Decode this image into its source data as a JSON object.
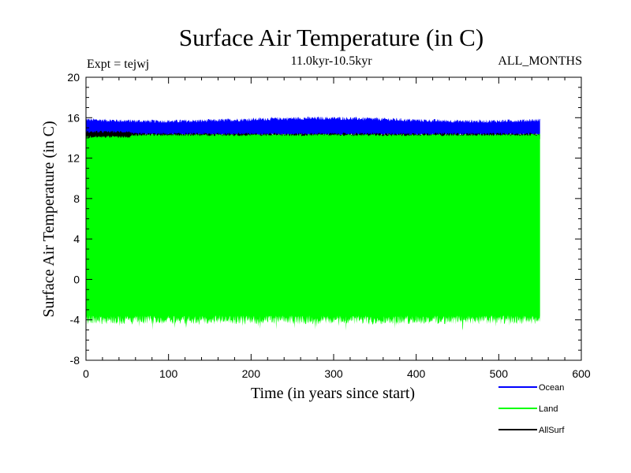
{
  "chart_data": {
    "type": "line",
    "title": "Surface Air Temperature (in C)",
    "experiment_label": "Expt = tejwj",
    "period_label": "11.0kyr-10.5kyr",
    "months_label": "ALL_MONTHS",
    "xlabel": "Time (in years since start)",
    "ylabel": "Surface Air Temperature (in C)",
    "xlim": [
      0,
      600
    ],
    "ylim": [
      -8,
      20
    ],
    "x_ticks": [
      0,
      100,
      200,
      300,
      400,
      500,
      600
    ],
    "x_tick_labels": [
      "0",
      "100",
      "200",
      "300",
      "400",
      "500",
      "600"
    ],
    "y_ticks": [
      -8,
      -4,
      0,
      4,
      8,
      12,
      16,
      20
    ],
    "y_tick_labels": [
      "-8",
      "-4",
      "0",
      "4",
      "8",
      "12",
      "16",
      "20"
    ],
    "x_range_of_data": [
      0,
      550
    ],
    "series": [
      {
        "name": "Ocean",
        "color": "#0000ff",
        "approx_min": 14.3,
        "approx_max": 15.8,
        "approx_mean": 15.1
      },
      {
        "name": "Land",
        "color": "#00ff00",
        "approx_min": -4.0,
        "approx_max": 14.3,
        "approx_mean": 5.0
      },
      {
        "name": "AllSurf",
        "color": "#000000",
        "approx_min": 13.9,
        "approx_max": 14.4,
        "approx_mean": 14.1
      }
    ],
    "legend": {
      "position": "bottom-right",
      "items": [
        "Ocean",
        "Land",
        "AllSurf"
      ]
    }
  }
}
